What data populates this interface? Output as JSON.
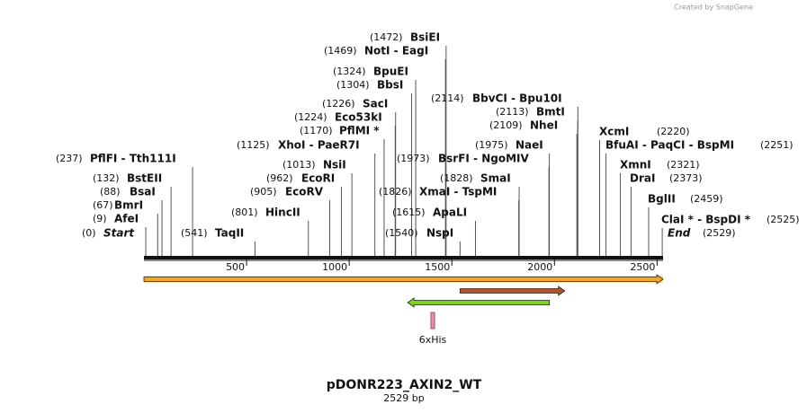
{
  "credit": "Created by SnapGene",
  "map": {
    "name": "pDONR223_AXIN2_WT",
    "length_label": "2529 bp",
    "ruler": {
      "xlim": [
        0,
        2529
      ],
      "ticks": [
        500,
        1000,
        1500,
        2000,
        2500
      ]
    },
    "enzymes": [
      {
        "site": {
          "value": 0,
          "label": "(0)"
        },
        "name": "Start",
        "italic": true
      },
      {
        "site": {
          "value": 9,
          "label": "(9)"
        },
        "name": "AfeI"
      },
      {
        "site": {
          "value": 67,
          "label": "(67)"
        },
        "name": "BmrI"
      },
      {
        "site": {
          "value": 88,
          "label": "(88)"
        },
        "name": "BsaI"
      },
      {
        "site": {
          "value": 132,
          "label": "(132)"
        },
        "name": "BstEII"
      },
      {
        "site": {
          "value": 237,
          "label": "(237)"
        },
        "name": "PflFI  -  Tth111I"
      },
      {
        "site": {
          "value": 541,
          "label": "(541)"
        },
        "name": "TaqII"
      },
      {
        "site": {
          "value": 801,
          "label": "(801)"
        },
        "name": "HincII"
      },
      {
        "site": {
          "value": 905,
          "label": "(905)"
        },
        "name": "EcoRV"
      },
      {
        "site": {
          "value": 962,
          "label": "(962)"
        },
        "name": "EcoRI"
      },
      {
        "site": {
          "value": 1013,
          "label": "(1013)"
        },
        "name": "NsiI"
      },
      {
        "site": {
          "value": 1125,
          "label": "(1125)"
        },
        "name": "XhoI  -  PaeR7I"
      },
      {
        "site": {
          "value": 1170,
          "label": "(1170)"
        },
        "name": "PflMI *"
      },
      {
        "site": {
          "value": 1224,
          "label": "(1224)"
        },
        "name": "Eco53kI"
      },
      {
        "site": {
          "value": 1226,
          "label": "(1226)"
        },
        "name": "SacI"
      },
      {
        "site": {
          "value": 1304,
          "label": "(1304)"
        },
        "name": "BbsI"
      },
      {
        "site": {
          "value": 1324,
          "label": "(1324)"
        },
        "name": "BpuEI"
      },
      {
        "site": {
          "value": 1469,
          "label": "(1469)"
        },
        "name": "NotI  -  EagI"
      },
      {
        "site": {
          "value": 1472,
          "label": "(1472)"
        },
        "name": "BsiEI"
      },
      {
        "site": {
          "value": 1540,
          "label": "(1540)"
        },
        "name": "NspI"
      },
      {
        "site": {
          "value": 1615,
          "label": "(1615)"
        },
        "name": "ApaLI"
      },
      {
        "site": {
          "value": 1826,
          "label": "(1826)"
        },
        "name": "XmaI  -  TspMI"
      },
      {
        "site": {
          "value": 1828,
          "label": "(1828)"
        },
        "name": "SmaI"
      },
      {
        "site": {
          "value": 1973,
          "label": "(1973)"
        },
        "name": "BsrFI  -  NgoMIV"
      },
      {
        "site": {
          "value": 1975,
          "label": "(1975)"
        },
        "name": "NaeI"
      },
      {
        "site": {
          "value": 2109,
          "label": "(2109)"
        },
        "name": "NheI"
      },
      {
        "site": {
          "value": 2113,
          "label": "(2113)"
        },
        "name": "BmtI"
      },
      {
        "site": {
          "value": 2114,
          "label": "(2114)"
        },
        "name": "BbvCI  -  Bpu10I"
      },
      {
        "site": {
          "value": 2220,
          "label": "(2220)"
        },
        "name": "XcmI"
      },
      {
        "site": {
          "value": 2251,
          "label": "(2251)"
        },
        "name": "BfuAI  -  PaqCI  -  BspMI"
      },
      {
        "site": {
          "value": 2321,
          "label": "(2321)"
        },
        "name": "XmnI"
      },
      {
        "site": {
          "value": 2373,
          "label": "(2373)"
        },
        "name": "DraI"
      },
      {
        "site": {
          "value": 2459,
          "label": "(2459)"
        },
        "name": "BglII"
      },
      {
        "site": {
          "value": 2525,
          "label": "(2525)"
        },
        "name": "ClaI *  -  BspDI *"
      },
      {
        "site": {
          "value": 2529,
          "label": "(2529)"
        },
        "name": "End",
        "italic": true
      }
    ],
    "features": [
      {
        "start": 0,
        "end": 2529,
        "direction": "forward",
        "color": "#f5a623"
      },
      {
        "start": 1540,
        "end": 2050,
        "direction": "forward",
        "color": "#b5542a"
      },
      {
        "start": 1285,
        "end": 1975,
        "direction": "reverse",
        "color": "#7ed321"
      },
      {
        "start": 1398,
        "end": 1416,
        "direction": "none",
        "color": "#e58fa8",
        "name": "6xHis"
      }
    ]
  }
}
